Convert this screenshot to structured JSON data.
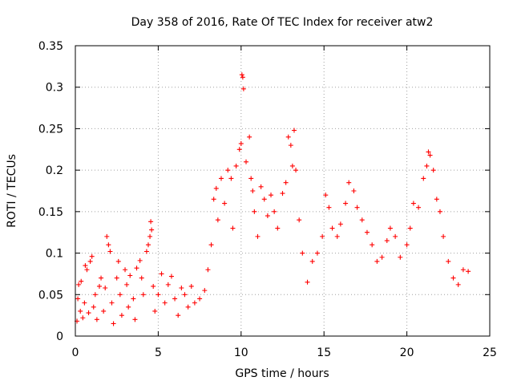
{
  "chart_data": {
    "type": "scatter",
    "title": "Day 358 of 2016, Rate Of TEC Index for receiver atw2",
    "xlabel": "GPS time / hours",
    "ylabel": "ROTI / TECUs",
    "xlim": [
      0,
      25
    ],
    "ylim": [
      0,
      0.35
    ],
    "xticks": [
      "0",
      "5",
      "10",
      "15",
      "20",
      "25"
    ],
    "yticks": [
      "0",
      "0.05",
      "0.1",
      "0.15",
      "0.2",
      "0.25",
      "0.3",
      "0.35"
    ],
    "grid": true,
    "marker": "+",
    "color": "#ff0000",
    "points": [
      [
        0.1,
        0.018
      ],
      [
        0.15,
        0.045
      ],
      [
        0.2,
        0.062
      ],
      [
        0.3,
        0.03
      ],
      [
        0.35,
        0.066
      ],
      [
        0.45,
        0.022
      ],
      [
        0.55,
        0.04
      ],
      [
        0.6,
        0.085
      ],
      [
        0.7,
        0.08
      ],
      [
        0.8,
        0.028
      ],
      [
        0.9,
        0.09
      ],
      [
        1.0,
        0.096
      ],
      [
        1.1,
        0.035
      ],
      [
        1.2,
        0.05
      ],
      [
        1.3,
        0.02
      ],
      [
        1.45,
        0.06
      ],
      [
        1.55,
        0.07
      ],
      [
        1.7,
        0.03
      ],
      [
        1.8,
        0.058
      ],
      [
        1.9,
        0.12
      ],
      [
        2.0,
        0.11
      ],
      [
        2.1,
        0.102
      ],
      [
        2.2,
        0.04
      ],
      [
        2.3,
        0.015
      ],
      [
        2.5,
        0.07
      ],
      [
        2.6,
        0.09
      ],
      [
        2.7,
        0.05
      ],
      [
        2.8,
        0.025
      ],
      [
        3.0,
        0.08
      ],
      [
        3.1,
        0.062
      ],
      [
        3.2,
        0.035
      ],
      [
        3.3,
        0.073
      ],
      [
        3.5,
        0.045
      ],
      [
        3.6,
        0.02
      ],
      [
        3.7,
        0.082
      ],
      [
        3.9,
        0.091
      ],
      [
        4.0,
        0.07
      ],
      [
        4.1,
        0.05
      ],
      [
        4.3,
        0.102
      ],
      [
        4.4,
        0.11
      ],
      [
        4.5,
        0.12
      ],
      [
        4.55,
        0.138
      ],
      [
        4.6,
        0.128
      ],
      [
        4.7,
        0.06
      ],
      [
        4.8,
        0.03
      ],
      [
        5.0,
        0.05
      ],
      [
        5.2,
        0.075
      ],
      [
        5.4,
        0.04
      ],
      [
        5.6,
        0.062
      ],
      [
        5.8,
        0.072
      ],
      [
        6.0,
        0.045
      ],
      [
        6.2,
        0.025
      ],
      [
        6.4,
        0.058
      ],
      [
        6.6,
        0.05
      ],
      [
        6.8,
        0.035
      ],
      [
        7.0,
        0.06
      ],
      [
        7.2,
        0.04
      ],
      [
        7.5,
        0.045
      ],
      [
        7.8,
        0.055
      ],
      [
        8.0,
        0.08
      ],
      [
        8.2,
        0.11
      ],
      [
        8.35,
        0.165
      ],
      [
        8.5,
        0.178
      ],
      [
        8.6,
        0.14
      ],
      [
        8.8,
        0.19
      ],
      [
        9.0,
        0.16
      ],
      [
        9.2,
        0.2
      ],
      [
        9.4,
        0.19
      ],
      [
        9.5,
        0.13
      ],
      [
        9.7,
        0.205
      ],
      [
        9.9,
        0.225
      ],
      [
        10.0,
        0.232
      ],
      [
        10.05,
        0.315
      ],
      [
        10.1,
        0.312
      ],
      [
        10.15,
        0.298
      ],
      [
        10.3,
        0.21
      ],
      [
        10.5,
        0.24
      ],
      [
        10.6,
        0.19
      ],
      [
        10.7,
        0.175
      ],
      [
        10.8,
        0.15
      ],
      [
        11.0,
        0.12
      ],
      [
        11.2,
        0.18
      ],
      [
        11.4,
        0.165
      ],
      [
        11.6,
        0.145
      ],
      [
        11.8,
        0.17
      ],
      [
        12.0,
        0.15
      ],
      [
        12.2,
        0.13
      ],
      [
        12.5,
        0.172
      ],
      [
        12.7,
        0.185
      ],
      [
        12.85,
        0.24
      ],
      [
        13.0,
        0.23
      ],
      [
        13.1,
        0.205
      ],
      [
        13.2,
        0.248
      ],
      [
        13.3,
        0.2
      ],
      [
        13.5,
        0.14
      ],
      [
        13.7,
        0.1
      ],
      [
        14.0,
        0.065
      ],
      [
        14.3,
        0.09
      ],
      [
        14.6,
        0.1
      ],
      [
        14.9,
        0.12
      ],
      [
        15.1,
        0.17
      ],
      [
        15.3,
        0.155
      ],
      [
        15.5,
        0.13
      ],
      [
        15.8,
        0.12
      ],
      [
        16.0,
        0.135
      ],
      [
        16.3,
        0.16
      ],
      [
        16.5,
        0.185
      ],
      [
        16.8,
        0.175
      ],
      [
        17.0,
        0.155
      ],
      [
        17.3,
        0.14
      ],
      [
        17.6,
        0.125
      ],
      [
        17.9,
        0.11
      ],
      [
        18.2,
        0.09
      ],
      [
        18.5,
        0.095
      ],
      [
        18.8,
        0.115
      ],
      [
        19.0,
        0.13
      ],
      [
        19.3,
        0.12
      ],
      [
        19.6,
        0.095
      ],
      [
        20.0,
        0.11
      ],
      [
        20.2,
        0.13
      ],
      [
        20.4,
        0.16
      ],
      [
        20.7,
        0.155
      ],
      [
        21.0,
        0.19
      ],
      [
        21.2,
        0.205
      ],
      [
        21.3,
        0.222
      ],
      [
        21.4,
        0.218
      ],
      [
        21.6,
        0.2
      ],
      [
        21.8,
        0.165
      ],
      [
        22.0,
        0.15
      ],
      [
        22.2,
        0.12
      ],
      [
        22.5,
        0.09
      ],
      [
        22.8,
        0.07
      ],
      [
        23.1,
        0.062
      ],
      [
        23.4,
        0.08
      ],
      [
        23.7,
        0.078
      ]
    ]
  }
}
